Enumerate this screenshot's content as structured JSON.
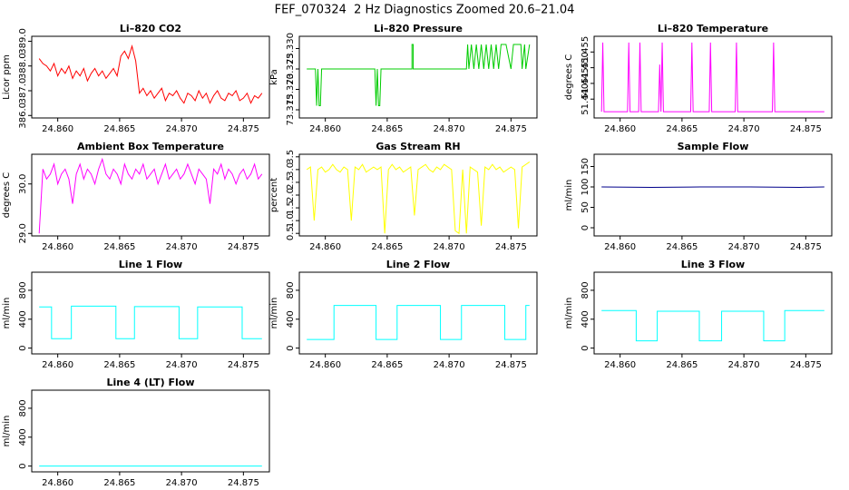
{
  "title": "FEF_070324  2 Hz Diagnostics Zoomed 20.6–21.04",
  "chart_data": [
    {
      "type": "line",
      "title": "Li–820 CO2",
      "ylabel": "Licor ppm",
      "x": [
        24.8585,
        24.8588,
        24.8591,
        24.8594,
        24.8597,
        24.86,
        24.8603,
        24.8606,
        24.8609,
        24.8612,
        24.8615,
        24.8618,
        24.8621,
        24.8624,
        24.8627,
        24.863,
        24.8633,
        24.8636,
        24.8639,
        24.8642,
        24.8645,
        24.8648,
        24.8651,
        24.8654,
        24.8657,
        24.866,
        24.8663,
        24.8666,
        24.8669,
        24.8672,
        24.8675,
        24.8678,
        24.8681,
        24.8684,
        24.8687,
        24.869,
        24.8693,
        24.8696,
        24.8699,
        24.8702,
        24.8705,
        24.8708,
        24.8711,
        24.8714,
        24.8717,
        24.872,
        24.8723,
        24.8726,
        24.8729,
        24.8732,
        24.8735,
        24.8738,
        24.8741,
        24.8744,
        24.8747,
        24.875,
        24.8753,
        24.8756,
        24.8759,
        24.8762,
        24.8765
      ],
      "series": [
        {
          "color": "#ff0000",
          "values": [
            388.3,
            388.1,
            388.0,
            387.8,
            388.1,
            387.6,
            387.9,
            387.7,
            388.0,
            387.5,
            387.8,
            387.6,
            387.9,
            387.4,
            387.7,
            387.9,
            387.6,
            387.8,
            387.5,
            387.7,
            387.9,
            387.6,
            388.4,
            388.6,
            388.3,
            388.8,
            388.2,
            386.9,
            387.1,
            386.8,
            387.0,
            386.7,
            386.9,
            387.1,
            386.6,
            386.9,
            386.8,
            387.0,
            386.7,
            386.5,
            386.9,
            386.8,
            386.6,
            387.0,
            386.7,
            386.9,
            386.5,
            386.8,
            387.0,
            386.7,
            386.6,
            386.9,
            386.8,
            387.0,
            386.6,
            386.7,
            386.9,
            386.5,
            386.8,
            386.7,
            386.9
          ]
        }
      ],
      "xlim": [
        24.8579,
        24.8771
      ],
      "ylim": [
        385.9,
        389.2
      ],
      "xticks": [
        {
          "value": 24.86,
          "label": "24.860"
        },
        {
          "value": 24.865,
          "label": "24.865"
        },
        {
          "value": 24.87,
          "label": "24.870"
        },
        {
          "value": 24.875,
          "label": "24.875"
        }
      ],
      "yticks": [
        {
          "value": 386,
          "label": "386.0"
        },
        {
          "value": 387,
          "label": "387.0"
        },
        {
          "value": 388,
          "label": "388.0"
        },
        {
          "value": 389,
          "label": "389.0"
        }
      ]
    },
    {
      "type": "line",
      "title": "Li–820 Pressure",
      "ylabel": "kPa",
      "x": [
        24.8585,
        24.8592,
        24.8593,
        24.8594,
        24.8595,
        24.8596,
        24.8597,
        24.864,
        24.8641,
        24.8642,
        24.8643,
        24.8644,
        24.8645,
        24.867,
        24.867,
        24.8671,
        24.8671,
        24.8714,
        24.8715,
        24.8716,
        24.8718,
        24.872,
        24.8722,
        24.8724,
        24.8726,
        24.8728,
        24.873,
        24.8732,
        24.8734,
        24.8736,
        24.8738,
        24.874,
        24.8742,
        24.8746,
        24.875,
        24.8752,
        24.8758,
        24.8759,
        24.8761,
        24.8762,
        24.8765
      ],
      "series": [
        {
          "color": "#00cc00",
          "values": [
            73.325,
            73.325,
            73.316,
            73.325,
            73.316,
            73.316,
            73.325,
            73.325,
            73.316,
            73.325,
            73.316,
            73.316,
            73.325,
            73.325,
            73.331,
            73.331,
            73.325,
            73.325,
            73.331,
            73.325,
            73.331,
            73.325,
            73.331,
            73.325,
            73.331,
            73.325,
            73.331,
            73.325,
            73.331,
            73.325,
            73.331,
            73.325,
            73.331,
            73.331,
            73.325,
            73.331,
            73.331,
            73.325,
            73.331,
            73.325,
            73.331
          ]
        }
      ],
      "xlim": [
        24.8579,
        24.8771
      ],
      "ylim": [
        73.313,
        73.333
      ],
      "xticks": [
        {
          "value": 24.86,
          "label": "24.860"
        },
        {
          "value": 24.865,
          "label": "24.865"
        },
        {
          "value": 24.87,
          "label": "24.870"
        },
        {
          "value": 24.875,
          "label": "24.875"
        }
      ],
      "yticks": [
        73.315,
        {
          "value": 73.32,
          "label": "73.320"
        },
        73.325,
        {
          "value": 73.33,
          "label": "73.330"
        }
      ]
    },
    {
      "type": "line",
      "title": "Li–820 Temperature",
      "ylabel": "degrees C",
      "x": [
        24.8585,
        24.8586,
        24.8587,
        24.8606,
        24.8607,
        24.8608,
        24.8615,
        24.8616,
        24.8617,
        24.8631,
        24.8632,
        24.8633,
        24.8634,
        24.8635,
        24.8657,
        24.8658,
        24.8659,
        24.8672,
        24.8673,
        24.8674,
        24.8693,
        24.8694,
        24.8695,
        24.8723,
        24.8724,
        24.8725,
        24.8765
      ],
      "series": [
        {
          "color": "#ff00ff",
          "values": [
            51.436,
            51.458,
            51.436,
            51.436,
            51.458,
            51.436,
            51.436,
            51.458,
            51.436,
            51.436,
            51.451,
            51.436,
            51.458,
            51.436,
            51.436,
            51.458,
            51.436,
            51.436,
            51.458,
            51.436,
            51.436,
            51.458,
            51.436,
            51.436,
            51.458,
            51.436,
            51.436
          ]
        }
      ],
      "xlim": [
        24.8579,
        24.8771
      ],
      "ylim": [
        51.434,
        51.46
      ],
      "xticks": [
        {
          "value": 24.86,
          "label": "24.860"
        },
        {
          "value": 24.865,
          "label": "24.865"
        },
        {
          "value": 24.87,
          "label": "24.870"
        },
        {
          "value": 24.875,
          "label": "24.875"
        }
      ],
      "yticks": [
        {
          "value": 51.44,
          "label": "51.440"
        },
        51.445,
        {
          "value": 51.45,
          "label": "51.450"
        },
        51.455
      ]
    },
    {
      "type": "line",
      "title": "Ambient Box Temperature",
      "ylabel": "degrees C",
      "x": [
        24.8585,
        24.8588,
        24.8591,
        24.8594,
        24.8597,
        24.86,
        24.8603,
        24.8606,
        24.8609,
        24.8612,
        24.8615,
        24.8618,
        24.8621,
        24.8624,
        24.8627,
        24.863,
        24.8633,
        24.8636,
        24.8639,
        24.8642,
        24.8645,
        24.8648,
        24.8651,
        24.8654,
        24.8657,
        24.866,
        24.8663,
        24.8666,
        24.8669,
        24.8672,
        24.8675,
        24.8678,
        24.8681,
        24.8684,
        24.8687,
        24.869,
        24.8693,
        24.8696,
        24.8699,
        24.8702,
        24.8705,
        24.8708,
        24.8711,
        24.8714,
        24.8717,
        24.872,
        24.8723,
        24.8726,
        24.8729,
        24.8732,
        24.8735,
        24.8738,
        24.8741,
        24.8744,
        24.8747,
        24.875,
        24.8753,
        24.8756,
        24.8759,
        24.8762,
        24.8765
      ],
      "series": [
        {
          "color": "#ff00ff",
          "values": [
            29.0,
            30.3,
            30.1,
            30.2,
            30.4,
            30.0,
            30.2,
            30.3,
            30.1,
            29.6,
            30.2,
            30.4,
            30.1,
            30.3,
            30.2,
            30.0,
            30.3,
            30.5,
            30.2,
            30.1,
            30.3,
            30.2,
            30.0,
            30.4,
            30.2,
            30.1,
            30.3,
            30.2,
            30.4,
            30.1,
            30.2,
            30.3,
            30.0,
            30.2,
            30.4,
            30.1,
            30.2,
            30.3,
            30.1,
            30.2,
            30.4,
            30.2,
            30.0,
            30.3,
            30.2,
            30.1,
            29.6,
            30.3,
            30.2,
            30.4,
            30.1,
            30.3,
            30.2,
            30.0,
            30.2,
            30.3,
            30.1,
            30.2,
            30.4,
            30.1,
            30.2
          ]
        }
      ],
      "xlim": [
        24.8579,
        24.8771
      ],
      "ylim": [
        28.95,
        30.6
      ],
      "xticks": [
        {
          "value": 24.86,
          "label": "24.860"
        },
        {
          "value": 24.865,
          "label": "24.865"
        },
        {
          "value": 24.87,
          "label": "24.870"
        },
        {
          "value": 24.875,
          "label": "24.875"
        }
      ],
      "yticks": [
        {
          "value": 29,
          "label": "29.0"
        },
        {
          "value": 30,
          "label": "30.0"
        }
      ]
    },
    {
      "type": "line",
      "title": "Gas Stream RH",
      "ylabel": "percent",
      "x": [
        24.8585,
        24.8588,
        24.8591,
        24.8594,
        24.8597,
        24.86,
        24.8603,
        24.8606,
        24.8609,
        24.8612,
        24.8615,
        24.8618,
        24.8621,
        24.8624,
        24.8627,
        24.863,
        24.8633,
        24.8636,
        24.8639,
        24.8642,
        24.8645,
        24.8648,
        24.8651,
        24.8654,
        24.8657,
        24.866,
        24.8663,
        24.8666,
        24.8669,
        24.8672,
        24.8675,
        24.8678,
        24.8681,
        24.8684,
        24.8687,
        24.869,
        24.8693,
        24.8696,
        24.8699,
        24.8702,
        24.8705,
        24.8708,
        24.8711,
        24.8714,
        24.8717,
        24.872,
        24.8723,
        24.8726,
        24.8729,
        24.8732,
        24.8735,
        24.8738,
        24.8741,
        24.8744,
        24.8747,
        24.875,
        24.8753,
        24.8756,
        24.8759,
        24.8762,
        24.8765
      ],
      "series": [
        {
          "color": "#ffff00",
          "values": [
            3.0,
            3.1,
            1.0,
            3.0,
            3.1,
            2.9,
            3.0,
            3.2,
            3.0,
            2.9,
            3.1,
            3.0,
            1.0,
            3.1,
            3.0,
            3.2,
            2.9,
            3.0,
            3.1,
            3.0,
            3.1,
            0.5,
            3.0,
            3.2,
            3.0,
            3.1,
            2.9,
            3.0,
            3.1,
            1.2,
            3.0,
            3.1,
            3.2,
            3.0,
            2.9,
            3.1,
            3.0,
            3.2,
            3.1,
            3.0,
            0.6,
            0.5,
            3.0,
            0.5,
            3.1,
            3.0,
            2.9,
            0.8,
            3.1,
            3.0,
            3.2,
            3.0,
            3.1,
            2.9,
            3.0,
            3.1,
            3.0,
            0.7,
            3.1,
            3.2,
            3.3
          ]
        }
      ],
      "xlim": [
        24.8579,
        24.8771
      ],
      "ylim": [
        0.4,
        3.6
      ],
      "xticks": [
        {
          "value": 24.86,
          "label": "24.860"
        },
        {
          "value": 24.865,
          "label": "24.865"
        },
        {
          "value": 24.87,
          "label": "24.870"
        },
        {
          "value": 24.875,
          "label": "24.875"
        }
      ],
      "yticks": [
        0.5,
        {
          "value": 1,
          "label": "1.0"
        },
        1.5,
        {
          "value": 2,
          "label": "2.0"
        },
        2.5,
        {
          "value": 3,
          "label": "3.0"
        },
        3.5
      ]
    },
    {
      "type": "line",
      "title": "Sample Flow",
      "ylabel": "ml/min",
      "x": [
        24.8585,
        24.8625,
        24.8665,
        24.8705,
        24.8745,
        24.8765
      ],
      "series": [
        {
          "color": "#00008b",
          "values": [
            100,
            99,
            100,
            100,
            99,
            100
          ]
        }
      ],
      "xlim": [
        24.8579,
        24.8771
      ],
      "ylim": [
        -20,
        180
      ],
      "xticks": [
        {
          "value": 24.86,
          "label": "24.860"
        },
        {
          "value": 24.865,
          "label": "24.865"
        },
        {
          "value": 24.87,
          "label": "24.870"
        },
        {
          "value": 24.875,
          "label": "24.875"
        }
      ],
      "yticks": [
        0,
        50,
        100,
        150
      ]
    },
    {
      "type": "line",
      "title": "Line 1 Flow",
      "ylabel": "ml/min",
      "x": [
        24.8585,
        24.8595,
        24.8595,
        24.8611,
        24.8611,
        24.8647,
        24.8647,
        24.8662,
        24.8662,
        24.8698,
        24.8698,
        24.8713,
        24.8713,
        24.8749,
        24.8749,
        24.8765
      ],
      "series": [
        {
          "color": "#00ffff",
          "values": [
            570,
            570,
            130,
            130,
            580,
            580,
            130,
            130,
            575,
            575,
            130,
            130,
            570,
            570,
            130,
            130
          ]
        }
      ],
      "xlim": [
        24.8579,
        24.8771
      ],
      "ylim": [
        -80,
        1050
      ],
      "xticks": [
        {
          "value": 24.86,
          "label": "24.860"
        },
        {
          "value": 24.865,
          "label": "24.865"
        },
        {
          "value": 24.87,
          "label": "24.870"
        },
        {
          "value": 24.875,
          "label": "24.875"
        }
      ],
      "yticks": [
        0,
        400,
        800
      ]
    },
    {
      "type": "line",
      "title": "Line 2 Flow",
      "ylabel": "ml/min",
      "x": [
        24.8585,
        24.8607,
        24.8607,
        24.8641,
        24.8641,
        24.8658,
        24.8658,
        24.8693,
        24.8693,
        24.871,
        24.871,
        24.8745,
        24.8745,
        24.8762,
        24.8762,
        24.8765
      ],
      "series": [
        {
          "color": "#00ffff",
          "values": [
            120,
            120,
            590,
            590,
            120,
            120,
            590,
            590,
            120,
            120,
            590,
            590,
            120,
            120,
            590,
            590
          ]
        }
      ],
      "xlim": [
        24.8579,
        24.8771
      ],
      "ylim": [
        -80,
        1050
      ],
      "xticks": [
        {
          "value": 24.86,
          "label": "24.860"
        },
        {
          "value": 24.865,
          "label": "24.865"
        },
        {
          "value": 24.87,
          "label": "24.870"
        },
        {
          "value": 24.875,
          "label": "24.875"
        }
      ],
      "yticks": [
        0,
        400,
        800
      ]
    },
    {
      "type": "line",
      "title": "Line 3 Flow",
      "ylabel": "ml/min",
      "x": [
        24.8585,
        24.8613,
        24.8613,
        24.863,
        24.863,
        24.8664,
        24.8664,
        24.8682,
        24.8682,
        24.8716,
        24.8716,
        24.8733,
        24.8733,
        24.8765
      ],
      "series": [
        {
          "color": "#00ffff",
          "values": [
            520,
            520,
            100,
            100,
            510,
            510,
            100,
            100,
            510,
            510,
            100,
            100,
            520,
            520
          ]
        }
      ],
      "xlim": [
        24.8579,
        24.8771
      ],
      "ylim": [
        -80,
        1050
      ],
      "xticks": [
        {
          "value": 24.86,
          "label": "24.860"
        },
        {
          "value": 24.865,
          "label": "24.865"
        },
        {
          "value": 24.87,
          "label": "24.870"
        },
        {
          "value": 24.875,
          "label": "24.875"
        }
      ],
      "yticks": [
        0,
        400,
        800
      ]
    },
    {
      "type": "line",
      "title": "Line 4 (LT) Flow",
      "ylabel": "ml/min",
      "x": [
        24.8585,
        24.8765
      ],
      "series": [
        {
          "color": "#00ffff",
          "values": [
            0,
            0
          ]
        }
      ],
      "xlim": [
        24.8579,
        24.8771
      ],
      "ylim": [
        -80,
        1050
      ],
      "xticks": [
        {
          "value": 24.86,
          "label": "24.860"
        },
        {
          "value": 24.865,
          "label": "24.865"
        },
        {
          "value": 24.87,
          "label": "24.870"
        },
        {
          "value": 24.875,
          "label": "24.875"
        }
      ],
      "yticks": [
        0,
        400,
        800
      ]
    }
  ]
}
